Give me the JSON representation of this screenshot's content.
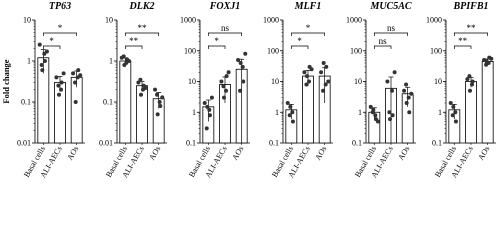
{
  "chart_data": [
    {
      "type": "bar",
      "title": "TP63",
      "y_label": "Fold change",
      "categories": [
        "Basal cells",
        "ALI-AECs",
        "AOs"
      ],
      "values": [
        1.2,
        0.3,
        0.4
      ],
      "errors": [
        0.7,
        0.12,
        0.17
      ],
      "points": [
        [
          2.5,
          1.5,
          1.0,
          0.8,
          0.6,
          1.7
        ],
        [
          0.4,
          0.2,
          0.3,
          0.25,
          0.15,
          0.5
        ],
        [
          0.5,
          0.4,
          0.6,
          0.3,
          0.1,
          0.45
        ]
      ],
      "ylim": [
        0.01,
        10
      ],
      "yticks": [
        0.01,
        0.1,
        1,
        10
      ],
      "log_scale": true,
      "color": "#ffffff",
      "point_color": "#333333",
      "annotations": [
        {
          "text": "*",
          "between": [
            "Basal cells",
            "ALI-AECs"
          ]
        },
        {
          "text": "*",
          "between": [
            "Basal cells",
            "AOs"
          ]
        }
      ]
    },
    {
      "type": "bar",
      "title": "DLK2",
      "categories": [
        "Basal cells",
        "ALI-AECs",
        "AOs"
      ],
      "values": [
        1.0,
        0.25,
        0.12
      ],
      "errors": [
        0.18,
        0.07,
        0.05
      ],
      "points": [
        [
          1.2,
          0.9,
          1.1,
          1.3,
          0.8,
          1.0
        ],
        [
          0.3,
          0.2,
          0.25,
          0.35,
          0.15,
          0.22
        ],
        [
          0.2,
          0.1,
          0.08,
          0.15,
          0.05,
          0.13
        ]
      ],
      "ylim": [
        0.01,
        10
      ],
      "yticks": [
        0.01,
        0.1,
        1,
        10
      ],
      "log_scale": true,
      "color": "#ffffff",
      "point_color": "#333333",
      "annotations": [
        {
          "text": "**",
          "between": [
            "Basal cells",
            "ALI-AECs"
          ]
        },
        {
          "text": "**",
          "between": [
            "Basal cells",
            "AOs"
          ]
        }
      ]
    },
    {
      "type": "bar",
      "title": "FOXJ1",
      "categories": [
        "Basal cells",
        "ALI-AECs",
        "AOs"
      ],
      "values": [
        1.5,
        8,
        25
      ],
      "errors": [
        1.0,
        6,
        28
      ],
      "points": [
        [
          2,
          1.2,
          0.8,
          0.3,
          1.5,
          3
        ],
        [
          10,
          5,
          15,
          7,
          3,
          20
        ],
        [
          50,
          30,
          10,
          5,
          40,
          80
        ]
      ],
      "ylim": [
        0.1,
        1000
      ],
      "yticks": [
        0.1,
        1,
        10,
        100,
        1000
      ],
      "log_scale": true,
      "color": "#ffffff",
      "point_color": "#333333",
      "annotations": [
        {
          "text": "*",
          "between": [
            "Basal cells",
            "ALI-AECs"
          ]
        },
        {
          "text": "ns",
          "between": [
            "Basal cells",
            "AOs"
          ]
        }
      ]
    },
    {
      "type": "bar",
      "title": "MLF1",
      "categories": [
        "Basal cells",
        "ALI-AECs",
        "AOs"
      ],
      "values": [
        1.2,
        15,
        15
      ],
      "errors": [
        0.6,
        8,
        13
      ],
      "points": [
        [
          2,
          1,
          0.5,
          0.8,
          1.5
        ],
        [
          20,
          10,
          30,
          8,
          15,
          25
        ],
        [
          20,
          8,
          30,
          5,
          40,
          10
        ]
      ],
      "ylim": [
        0.1,
        1000
      ],
      "yticks": [
        0.1,
        1,
        10,
        100,
        1000
      ],
      "log_scale": true,
      "color": "#ffffff",
      "point_color": "#333333",
      "annotations": [
        {
          "text": "*",
          "between": [
            "Basal cells",
            "ALI-AECs"
          ]
        },
        {
          "text": "*",
          "between": [
            "Basal cells",
            "AOs"
          ]
        }
      ]
    },
    {
      "type": "bar",
      "title": "MUC5AC",
      "categories": [
        "Basal cells",
        "ALI-AECs",
        "AOs"
      ],
      "values": [
        1,
        6,
        4
      ],
      "errors": [
        0.4,
        8,
        2.5
      ],
      "points": [
        [
          1.5,
          0.8,
          0.6,
          1.0,
          1.2,
          0.5
        ],
        [
          10,
          5,
          0.8,
          1,
          0.6,
          20
        ],
        [
          5,
          3,
          1,
          8,
          2,
          4
        ]
      ],
      "ylim": [
        0.1,
        1000
      ],
      "yticks": [
        0.1,
        1,
        10,
        100,
        1000
      ],
      "log_scale": true,
      "color": "#ffffff",
      "point_color": "#333333",
      "annotations": [
        {
          "text": "ns",
          "between": [
            "Basal cells",
            "ALI-AECs"
          ]
        },
        {
          "text": "ns",
          "between": [
            "Basal cells",
            "AOs"
          ]
        }
      ]
    },
    {
      "type": "bar",
      "title": "BPIFB1",
      "categories": [
        "Basal cells",
        "ALI-AECs",
        "AOs"
      ],
      "values": [
        1.2,
        10,
        45
      ],
      "errors": [
        0.6,
        3.5,
        9
      ],
      "points": [
        [
          2,
          1,
          0.5,
          0.8,
          1.5
        ],
        [
          12,
          8,
          10,
          15,
          5
        ],
        [
          50,
          40,
          60,
          35,
          45,
          55
        ]
      ],
      "ylim": [
        0.1,
        1000
      ],
      "yticks": [
        0.1,
        1,
        10,
        100,
        1000
      ],
      "log_scale": true,
      "color": "#ffffff",
      "point_color": "#333333",
      "annotations": [
        {
          "text": "**",
          "between": [
            "Basal cells",
            "ALI-AECs"
          ]
        },
        {
          "text": "**",
          "between": [
            "Basal cells",
            "AOs"
          ]
        }
      ]
    }
  ]
}
